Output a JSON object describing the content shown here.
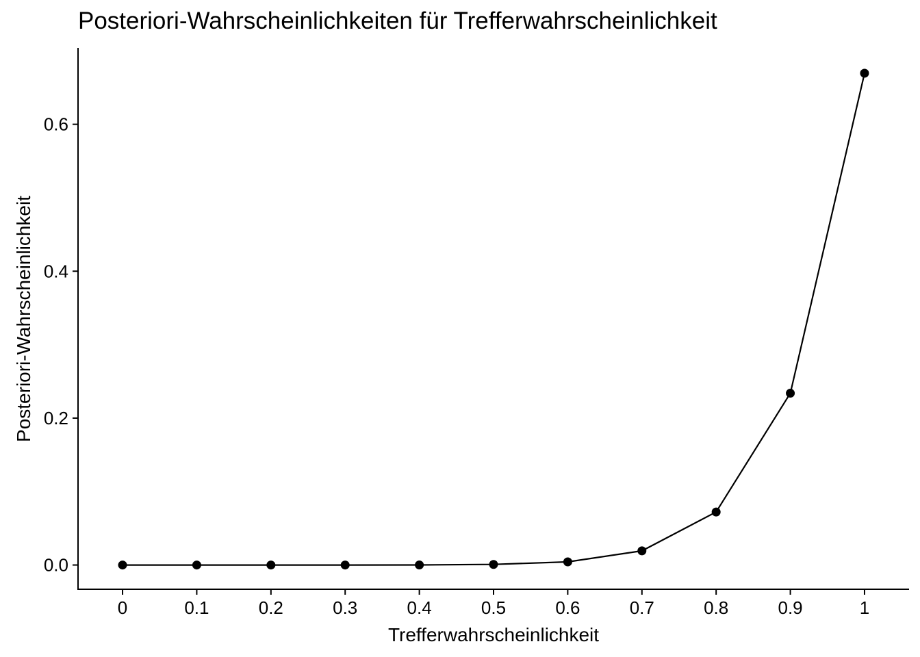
{
  "chart_data": {
    "type": "line",
    "title": "Posteriori-Wahrscheinlichkeiten für Trefferwahrscheinlichkeit",
    "xlabel": "Trefferwahrscheinlichkeit",
    "ylabel": "Posteriori-Wahrscheinlichkeit",
    "x_ticks": [
      "0",
      "0.1",
      "0.2",
      "0.3",
      "0.4",
      "0.5",
      "0.6",
      "0.7",
      "0.8",
      "0.9",
      "1"
    ],
    "y_ticks": [
      "0.0",
      "0.2",
      "0.4",
      "0.6"
    ],
    "xlim": [
      -0.06,
      1.06
    ],
    "ylim": [
      -0.033,
      0.704
    ],
    "grid": false,
    "legend": "none",
    "series": [
      {
        "color": "#000000",
        "markers": true,
        "x": [
          0,
          0.1,
          0.2,
          0.3,
          0.4,
          0.5,
          0.6,
          0.7,
          0.8,
          0.9,
          1
        ],
        "y": [
          0.0,
          0.0,
          0.0,
          0.0,
          0.0001,
          0.0008,
          0.0043,
          0.0193,
          0.0722,
          0.2339,
          0.6695
        ]
      }
    ]
  }
}
